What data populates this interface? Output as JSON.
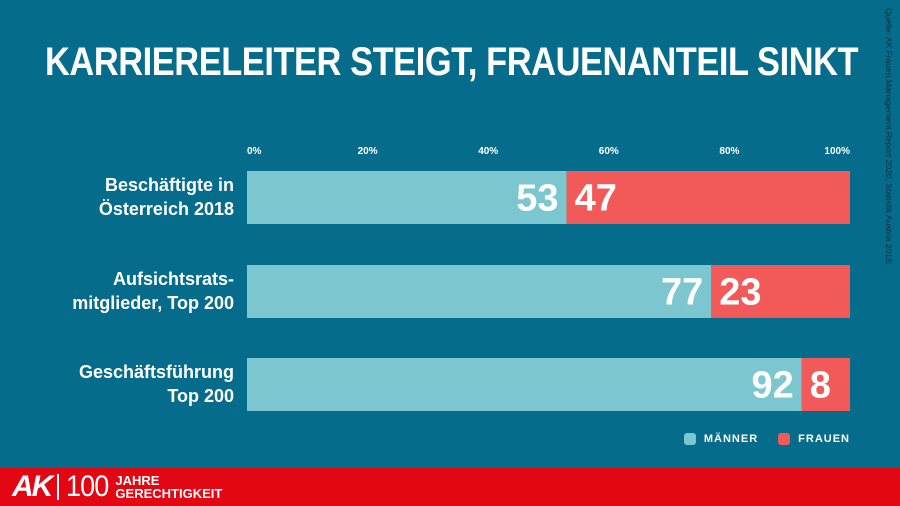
{
  "title": "KARRIERELEITER STEIGT, FRAUENANTEIL SINKT",
  "source": "Quelle: AK Frauen.Management.Report 2020, Statistik Austria 2018;",
  "chart_data": {
    "type": "bar",
    "orientation": "horizontal",
    "stacked": true,
    "categories": [
      [
        "Beschäftigte in",
        "Österreich 2018"
      ],
      [
        "Aufsichtsrats-",
        "mitglieder, Top 200"
      ],
      [
        "Geschäftsführung",
        "Top 200"
      ]
    ],
    "series": [
      {
        "name": "MÄNNER",
        "values": [
          53,
          77,
          92
        ],
        "color": "#7cc7cf"
      },
      {
        "name": "FRAUEN",
        "values": [
          47,
          23,
          8
        ],
        "color": "#f25a5a"
      }
    ],
    "xlim": [
      0,
      100
    ],
    "ticks": [
      "0%",
      "20%",
      "40%",
      "60%",
      "80%",
      "100%"
    ],
    "legend_position": "bottom-right"
  },
  "footer": {
    "logo": "AK",
    "number": "100",
    "line1": "JAHRE",
    "line2": "GERECHTIGKEIT"
  }
}
